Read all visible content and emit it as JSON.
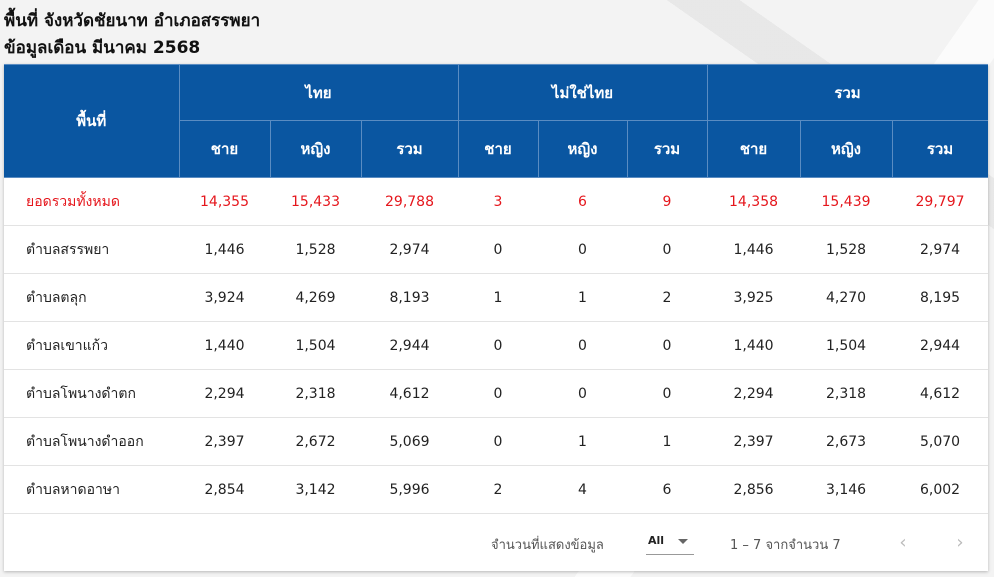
{
  "page": {
    "title_line1": "พื้นที่ จังหวัดชัยนาท อำเภอสรรพยา",
    "title_line2": "ข้อมูลเดือน มีนาคม 2568"
  },
  "table": {
    "area_header": "พื้นที่",
    "groups": [
      "ไทย",
      "ไม่ใช่ไทย",
      "รวม"
    ],
    "subheaders": [
      "ชาย",
      "หญิง",
      "รวม",
      "ชาย",
      "หญิง",
      "รวม",
      "ชาย",
      "หญิง",
      "รวม"
    ],
    "rows": [
      {
        "area": "ยอดรวมทั้งหมด",
        "values": [
          "14,355",
          "15,433",
          "29,788",
          "3",
          "6",
          "9",
          "14,358",
          "15,439",
          "29,797"
        ]
      },
      {
        "area": "ตำบลสรรพยา",
        "values": [
          "1,446",
          "1,528",
          "2,974",
          "0",
          "0",
          "0",
          "1,446",
          "1,528",
          "2,974"
        ]
      },
      {
        "area": "ตำบลตลุก",
        "values": [
          "3,924",
          "4,269",
          "8,193",
          "1",
          "1",
          "2",
          "3,925",
          "4,270",
          "8,195"
        ]
      },
      {
        "area": "ตำบลเขาแก้ว",
        "values": [
          "1,440",
          "1,504",
          "2,944",
          "0",
          "0",
          "0",
          "1,440",
          "1,504",
          "2,944"
        ]
      },
      {
        "area": "ตำบลโพนางดำตก",
        "values": [
          "2,294",
          "2,318",
          "4,612",
          "0",
          "0",
          "0",
          "2,294",
          "2,318",
          "4,612"
        ]
      },
      {
        "area": "ตำบลโพนางดำออก",
        "values": [
          "2,397",
          "2,672",
          "5,069",
          "0",
          "1",
          "1",
          "2,397",
          "2,673",
          "5,070"
        ]
      },
      {
        "area": "ตำบลหาดอาษา",
        "values": [
          "2,854",
          "3,142",
          "5,996",
          "2",
          "4",
          "6",
          "2,856",
          "3,146",
          "6,002"
        ]
      }
    ],
    "total_color": "#e5161c",
    "header_color": "#0a56a1"
  },
  "footer": {
    "rows_per_page_label": "จำนวนที่แสดงข้อมูล",
    "rows_per_page_value": "All",
    "range_text": "1 – 7 จากจำนวน 7",
    "prev_icon": "chevron-left-icon",
    "next_icon": "chevron-right-icon"
  }
}
